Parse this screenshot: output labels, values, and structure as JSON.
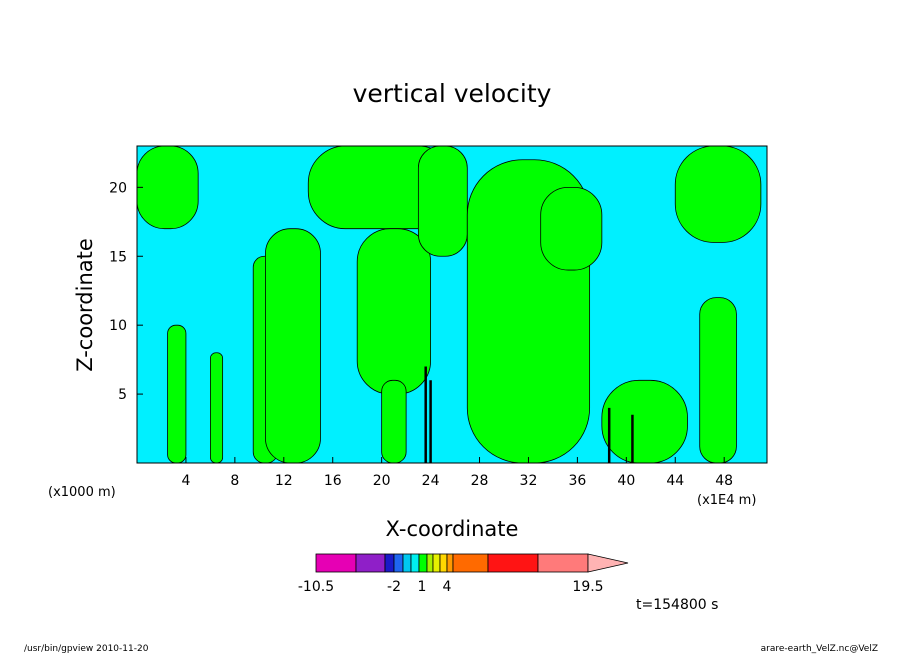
{
  "chart_data": {
    "type": "heatmap",
    "title": "vertical velocity",
    "xlabel": "X-coordinate",
    "ylabel": "Z-coordinate",
    "x_unit_left": "(x1000 m)",
    "x_unit_right": "(x1E4 m)",
    "xlim": [
      0,
      51.5
    ],
    "ylim": [
      0,
      23
    ],
    "x_ticks": [
      4,
      8,
      12,
      16,
      20,
      24,
      28,
      32,
      36,
      40,
      44,
      48
    ],
    "y_ticks": [
      5,
      10,
      15,
      20
    ],
    "colorbar": {
      "levels": [
        -10.5,
        -7.5,
        -5,
        -4,
        -3,
        -2,
        -1,
        0,
        1,
        2,
        3,
        4,
        7.5,
        11.5,
        15.5,
        19.5
      ],
      "colors": [
        "#e600b4",
        "#8f1fc8",
        "#1a1ac8",
        "#1f66f0",
        "#00c8f0",
        "#00f0f0",
        "#00ff00",
        "#a8f000",
        "#e6f000",
        "#ffd700",
        "#ff9900",
        "#ff6a00",
        "#ff1414",
        "#ff7a7a",
        "#ffb3b3"
      ],
      "tick_labels": [
        "-10.5",
        "-2",
        "1",
        "4",
        "19.5"
      ],
      "tick_values": [
        -10.5,
        -2,
        1,
        4,
        19.5
      ]
    },
    "field_colors": {
      "negative": "#00f0ff",
      "positive": "#00ff00",
      "strong_negative": "#000000"
    },
    "green_regions": [
      {
        "x": [
          0,
          5
        ],
        "z": [
          17,
          23
        ]
      },
      {
        "x": [
          2.5,
          4
        ],
        "z": [
          0,
          10
        ]
      },
      {
        "x": [
          6,
          7
        ],
        "z": [
          0,
          8
        ]
      },
      {
        "x": [
          9.5,
          11.5
        ],
        "z": [
          0,
          15
        ]
      },
      {
        "x": [
          10.5,
          15
        ],
        "z": [
          0,
          17
        ]
      },
      {
        "x": [
          14,
          26
        ],
        "z": [
          17,
          23
        ]
      },
      {
        "x": [
          18,
          24
        ],
        "z": [
          5,
          17
        ]
      },
      {
        "x": [
          20,
          22
        ],
        "z": [
          0,
          6
        ]
      },
      {
        "x": [
          23,
          27
        ],
        "z": [
          15,
          23
        ]
      },
      {
        "x": [
          27,
          37
        ],
        "z": [
          0,
          22
        ]
      },
      {
        "x": [
          33,
          38
        ],
        "z": [
          14,
          20
        ]
      },
      {
        "x": [
          38,
          45
        ],
        "z": [
          0,
          6
        ]
      },
      {
        "x": [
          44,
          51
        ],
        "z": [
          16,
          23
        ]
      },
      {
        "x": [
          46,
          49
        ],
        "z": [
          0,
          12
        ]
      }
    ],
    "strong_updraft_columns": [
      {
        "x": 23.6,
        "z": [
          0,
          7
        ]
      },
      {
        "x": 24.0,
        "z": [
          0,
          6
        ]
      },
      {
        "x": 38.6,
        "z": [
          0,
          4
        ]
      },
      {
        "x": 40.5,
        "z": [
          0,
          3.5
        ]
      }
    ]
  },
  "time_label": "t=154800 s",
  "footer_left": "/usr/bin/gpview   2010-11-20",
  "footer_right": "arare-earth_VelZ.nc@VelZ"
}
